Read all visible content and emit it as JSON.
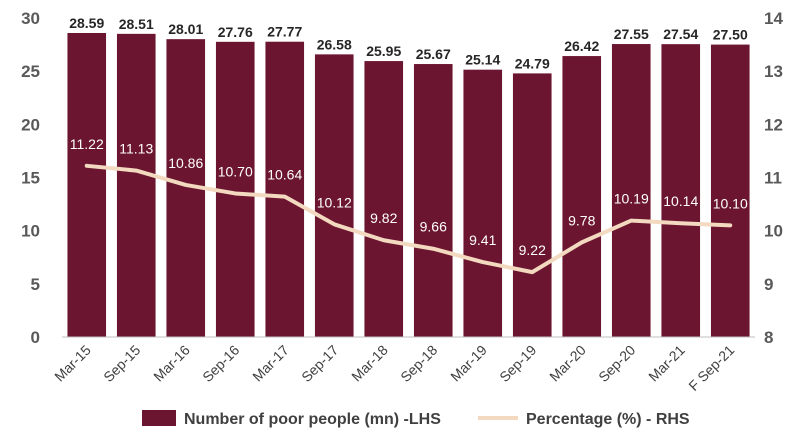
{
  "chart_data": {
    "type": "bar",
    "categories": [
      "Mar-15",
      "Sep-15",
      "Mar-16",
      "Sep-16",
      "Mar-17",
      "Sep-17",
      "Mar-18",
      "Sep-18",
      "Mar-19",
      "Sep-19",
      "Mar-20",
      "Sep-20",
      "Mar-21",
      "F Sep-21"
    ],
    "series": [
      {
        "name": "Number of poor people (mn) -LHS",
        "type": "bar",
        "axis": "left",
        "color": "#6b1530",
        "values": [
          28.59,
          28.51,
          28.01,
          27.76,
          27.77,
          26.58,
          25.95,
          25.67,
          25.14,
          24.79,
          26.42,
          27.55,
          27.54,
          27.5
        ],
        "labels": [
          "28.59",
          "28.51",
          "28.01",
          "27.76",
          "27.77",
          "26.58",
          "25.95",
          "25.67",
          "25.14",
          "24.79",
          "26.42",
          "27.55",
          "27.54",
          "27.50"
        ]
      },
      {
        "name": "Percentage (%) - RHS",
        "type": "line",
        "axis": "right",
        "color": "#f2d9bf",
        "values": [
          11.22,
          11.13,
          10.86,
          10.7,
          10.64,
          10.12,
          9.82,
          9.66,
          9.41,
          9.22,
          9.78,
          10.19,
          10.14,
          10.1
        ],
        "labels": [
          "11.22",
          "11.13",
          "10.86",
          "10.70",
          "10.64",
          "10.12",
          "9.82",
          "9.66",
          "9.41",
          "9.22",
          "9.78",
          "10.19",
          "10.14",
          "10.10"
        ]
      }
    ],
    "y_left": {
      "min": 0,
      "max": 30,
      "ticks": [
        "0",
        "5",
        "10",
        "15",
        "20",
        "25",
        "30"
      ]
    },
    "y_right": {
      "min": 8,
      "max": 14,
      "ticks": [
        "8",
        "9",
        "10",
        "11",
        "12",
        "13",
        "14"
      ]
    },
    "grid": false,
    "legend_position": "bottom",
    "title": "",
    "xlabel": "",
    "ylabel": ""
  }
}
